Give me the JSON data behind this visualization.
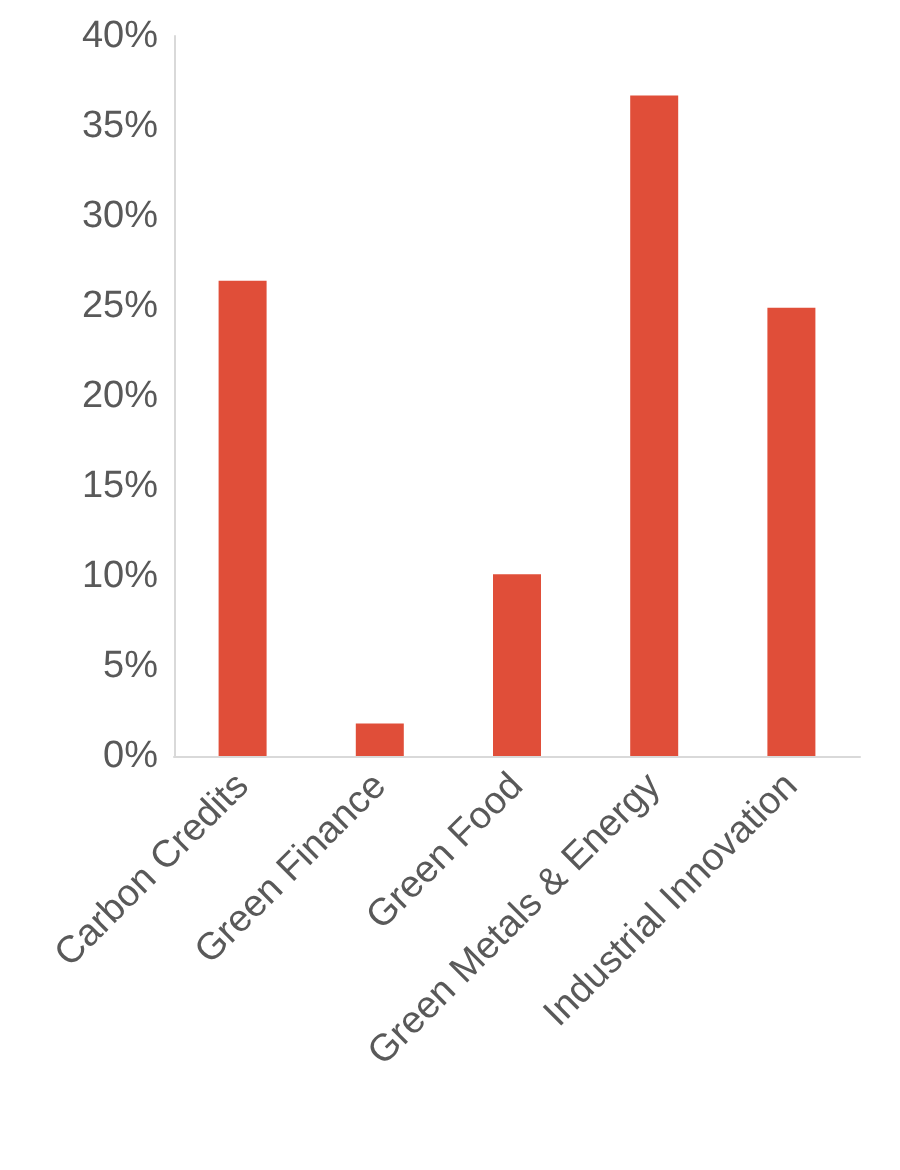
{
  "chart_data": {
    "type": "bar",
    "categories": [
      "Carbon Credits",
      "Green Finance",
      "Green Food",
      "Green Metals & Energy",
      "Industrial Innovation"
    ],
    "values": [
      26.4,
      1.8,
      10.1,
      36.7,
      24.9
    ],
    "color": "#e04e39",
    "ylim": [
      0,
      40
    ],
    "yticks": [
      {
        "value": 0,
        "label": "0%"
      },
      {
        "value": 5,
        "label": "5%"
      },
      {
        "value": 10,
        "label": "10%"
      },
      {
        "value": 15,
        "label": "15%"
      },
      {
        "value": 20,
        "label": "20%"
      },
      {
        "value": 25,
        "label": "25%"
      },
      {
        "value": 30,
        "label": "30%"
      },
      {
        "value": 35,
        "label": "35%"
      },
      {
        "value": 40,
        "label": "40%"
      }
    ],
    "grid": false
  }
}
